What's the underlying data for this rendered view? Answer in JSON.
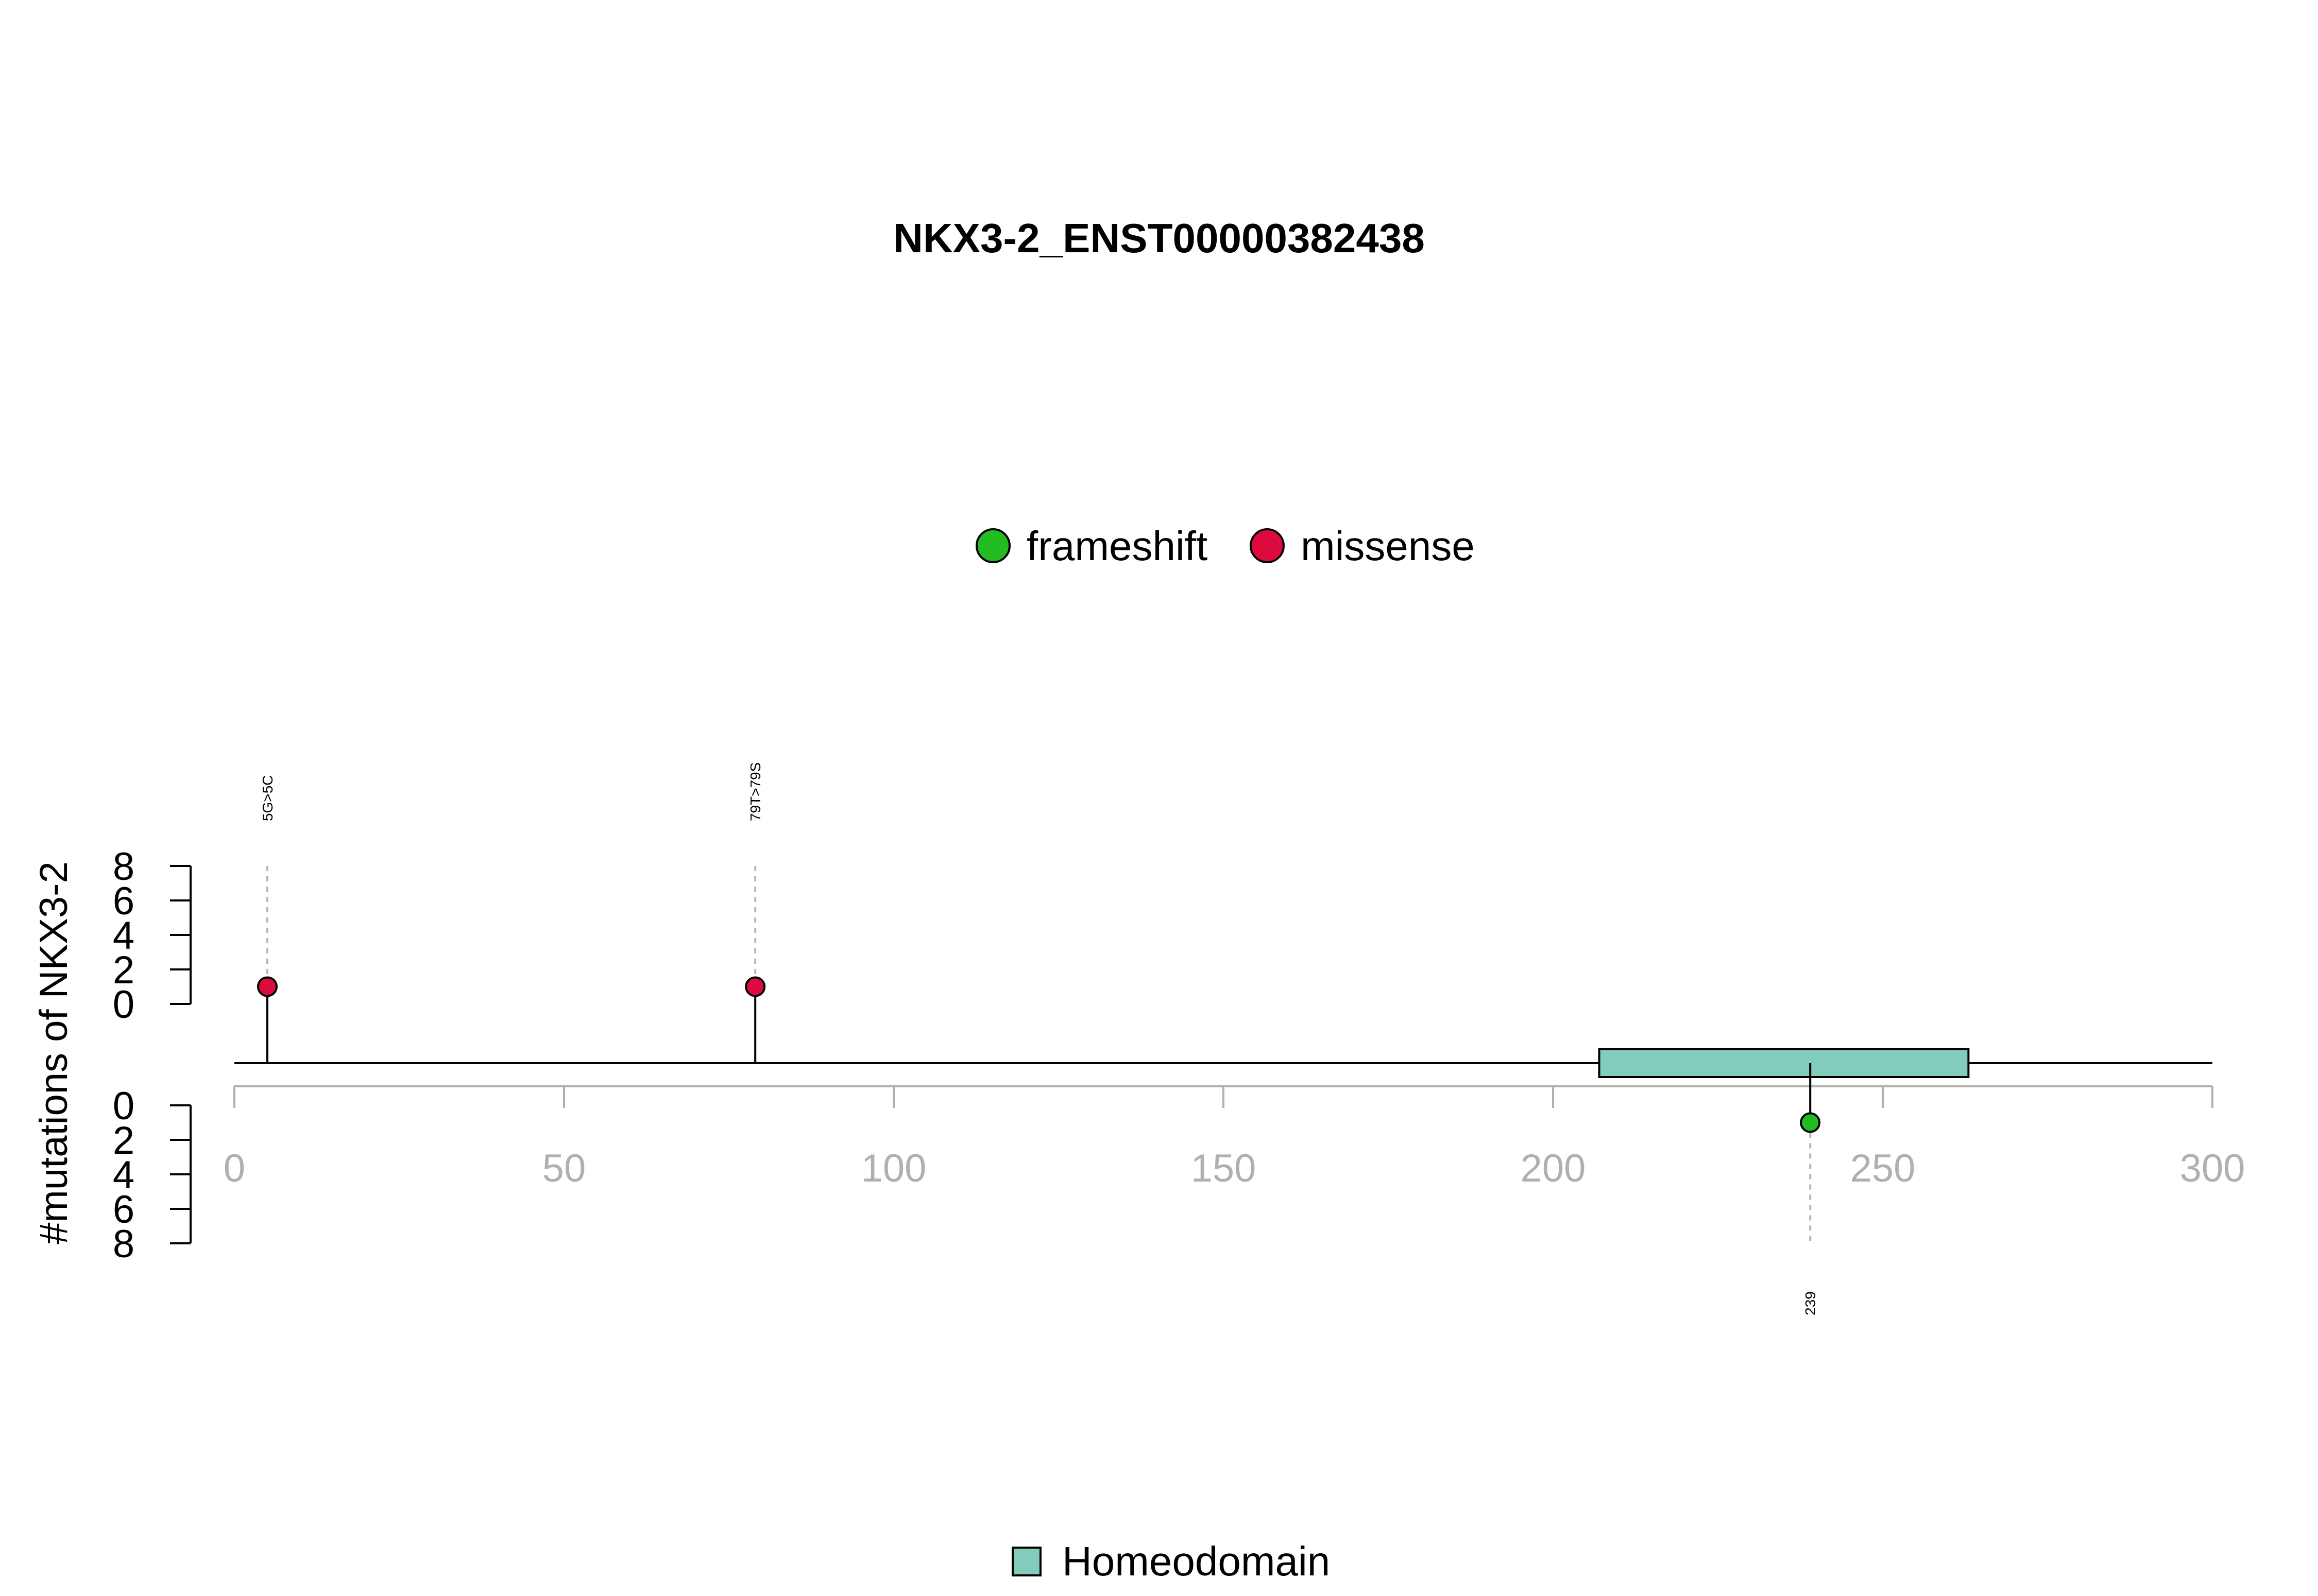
{
  "chart_data": {
    "type": "lollipop",
    "title": "NKX3-2_ENST00000382438",
    "ylabel": "#mutations of NKX3-2",
    "x_ticks": [
      0,
      50,
      100,
      150,
      200,
      250,
      300
    ],
    "xlim": [
      0,
      300
    ],
    "y_ticks": [
      0,
      2,
      4,
      6,
      8
    ],
    "ylim": [
      0,
      8
    ],
    "legend": [
      {
        "label": "frameshift",
        "color": "#22bb22"
      },
      {
        "label": "missense",
        "color": "#dd0a3d"
      }
    ],
    "mutations": [
      {
        "position": 5,
        "count": 1,
        "type": "missense",
        "label": "5G>5C",
        "side": "top"
      },
      {
        "position": 79,
        "count": 1,
        "type": "missense",
        "label": "79T>79S",
        "side": "top"
      },
      {
        "position": 239,
        "count": 1,
        "type": "frameshift",
        "label": "239",
        "side": "bottom"
      }
    ],
    "domains": [
      {
        "name": "Homeodomain",
        "start": 207,
        "end": 263,
        "color": "#82cdbb"
      }
    ],
    "domain_legend": [
      {
        "label": "Homeodomain",
        "color": "#82cdbb"
      }
    ]
  }
}
